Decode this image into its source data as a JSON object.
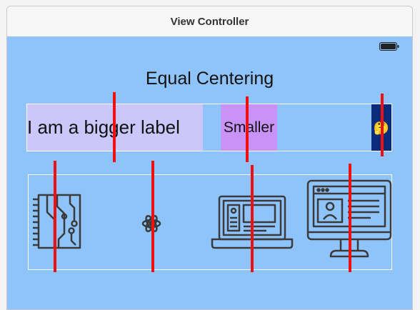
{
  "window": {
    "title": "View Controller"
  },
  "content": {
    "heading": "Equal Centering",
    "big_label": "I am a bigger label",
    "small_label": "Smaller",
    "emoji": "🤔"
  },
  "icons": [
    "circuit-board-icon",
    "atom-icon",
    "laptop-icon",
    "computer-monitor-icon"
  ],
  "colors": {
    "background": "#8fc4fb",
    "big_label_bg": "#cbc7fa",
    "small_label_bg": "#c892f7",
    "emoji_bg": "#0a2a7a",
    "guide": "#ee1111",
    "icon_stroke": "#3a3a3a"
  }
}
